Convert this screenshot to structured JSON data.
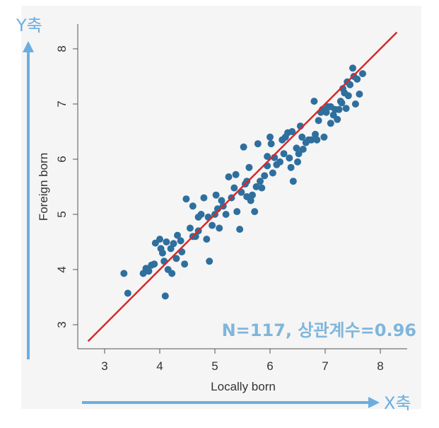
{
  "chart_data": {
    "type": "scatter",
    "xlabel": "Locally born",
    "ylabel": "Foreign born",
    "xlim": [
      2.6,
      8.3
    ],
    "ylim": [
      2.6,
      8.5
    ],
    "x_ticks": [
      3,
      4,
      5,
      6,
      7,
      8
    ],
    "y_ticks": [
      3,
      4,
      5,
      6,
      7,
      8
    ],
    "grid": false,
    "point_color": "#2e6f9e",
    "fit_line_color": "#d62a2a",
    "fit_line": {
      "x": [
        2.7,
        8.3
      ],
      "y": [
        2.7,
        8.3
      ]
    },
    "annotation": "N=117, 상관계수=0.96",
    "x_callout": "X축",
    "y_callout": "Y축",
    "callout_color": "#6aaee0",
    "points": [
      [
        3.35,
        3.93
      ],
      [
        3.42,
        3.57
      ],
      [
        3.7,
        3.93
      ],
      [
        3.75,
        4.02
      ],
      [
        3.8,
        3.97
      ],
      [
        3.85,
        4.08
      ],
      [
        3.92,
        4.48
      ],
      [
        4.0,
        4.55
      ],
      [
        4.02,
        4.38
      ],
      [
        4.08,
        4.15
      ],
      [
        4.1,
        3.52
      ],
      [
        4.12,
        4.5
      ],
      [
        4.15,
        4.0
      ],
      [
        4.2,
        4.38
      ],
      [
        4.22,
        3.93
      ],
      [
        4.25,
        4.47
      ],
      [
        4.3,
        4.2
      ],
      [
        4.32,
        4.62
      ],
      [
        4.38,
        4.52
      ],
      [
        4.4,
        4.32
      ],
      [
        4.45,
        4.1
      ],
      [
        4.48,
        5.28
      ],
      [
        4.55,
        4.75
      ],
      [
        4.6,
        5.15
      ],
      [
        4.65,
        4.6
      ],
      [
        4.7,
        4.7
      ],
      [
        4.75,
        5.0
      ],
      [
        4.8,
        5.3
      ],
      [
        4.85,
        4.55
      ],
      [
        4.88,
        4.95
      ],
      [
        4.9,
        4.15
      ],
      [
        4.95,
        4.8
      ],
      [
        5.0,
        5.0
      ],
      [
        5.02,
        5.35
      ],
      [
        5.05,
        5.1
      ],
      [
        5.08,
        4.75
      ],
      [
        5.12,
        5.25
      ],
      [
        5.15,
        5.15
      ],
      [
        5.2,
        5.0
      ],
      [
        5.25,
        5.68
      ],
      [
        5.3,
        5.3
      ],
      [
        5.35,
        5.48
      ],
      [
        5.38,
        5.72
      ],
      [
        5.45,
        4.73
      ],
      [
        5.48,
        5.4
      ],
      [
        5.52,
        6.22
      ],
      [
        5.55,
        5.55
      ],
      [
        5.58,
        5.6
      ],
      [
        5.62,
        5.85
      ],
      [
        5.65,
        5.25
      ],
      [
        5.68,
        5.35
      ],
      [
        5.72,
        5.05
      ],
      [
        5.75,
        5.5
      ],
      [
        5.78,
        6.28
      ],
      [
        5.82,
        5.6
      ],
      [
        5.85,
        5.48
      ],
      [
        5.9,
        5.7
      ],
      [
        5.95,
        5.88
      ],
      [
        6.0,
        6.4
      ],
      [
        6.02,
        6.28
      ],
      [
        6.05,
        5.75
      ],
      [
        6.08,
        6.03
      ],
      [
        6.12,
        5.9
      ],
      [
        6.18,
        5.95
      ],
      [
        6.22,
        6.35
      ],
      [
        6.25,
        6.1
      ],
      [
        6.28,
        6.4
      ],
      [
        6.32,
        6.48
      ],
      [
        6.35,
        6.02
      ],
      [
        6.38,
        5.85
      ],
      [
        6.42,
        5.6
      ],
      [
        6.48,
        6.2
      ],
      [
        6.5,
        5.95
      ],
      [
        6.52,
        6.1
      ],
      [
        6.55,
        6.6
      ],
      [
        6.6,
        6.18
      ],
      [
        6.65,
        6.3
      ],
      [
        6.7,
        6.35
      ],
      [
        6.75,
        6.35
      ],
      [
        6.8,
        7.05
      ],
      [
        6.82,
        6.45
      ],
      [
        6.88,
        6.7
      ],
      [
        6.92,
        6.85
      ],
      [
        6.95,
        6.9
      ],
      [
        6.98,
        6.4
      ],
      [
        7.02,
        6.85
      ],
      [
        7.05,
        6.95
      ],
      [
        7.1,
        6.65
      ],
      [
        7.15,
        6.8
      ],
      [
        7.18,
        6.9
      ],
      [
        7.22,
        6.72
      ],
      [
        7.25,
        6.9
      ],
      [
        7.3,
        7.02
      ],
      [
        7.32,
        7.28
      ],
      [
        7.35,
        7.2
      ],
      [
        7.38,
        6.92
      ],
      [
        7.4,
        7.4
      ],
      [
        7.42,
        7.15
      ],
      [
        7.45,
        7.35
      ],
      [
        7.5,
        7.65
      ],
      [
        7.52,
        7.5
      ],
      [
        7.55,
        7.0
      ],
      [
        7.58,
        7.45
      ],
      [
        7.62,
        7.18
      ],
      [
        7.68,
        7.55
      ],
      [
        7.28,
        7.05
      ],
      [
        6.58,
        6.4
      ],
      [
        5.95,
        6.05
      ],
      [
        5.4,
        5.05
      ],
      [
        4.7,
        4.95
      ],
      [
        4.05,
        4.3
      ],
      [
        6.4,
        6.5
      ],
      [
        7.1,
        6.95
      ],
      [
        6.85,
        6.35
      ],
      [
        5.58,
        5.32
      ],
      [
        4.6,
        4.6
      ],
      [
        3.9,
        4.1
      ]
    ]
  }
}
